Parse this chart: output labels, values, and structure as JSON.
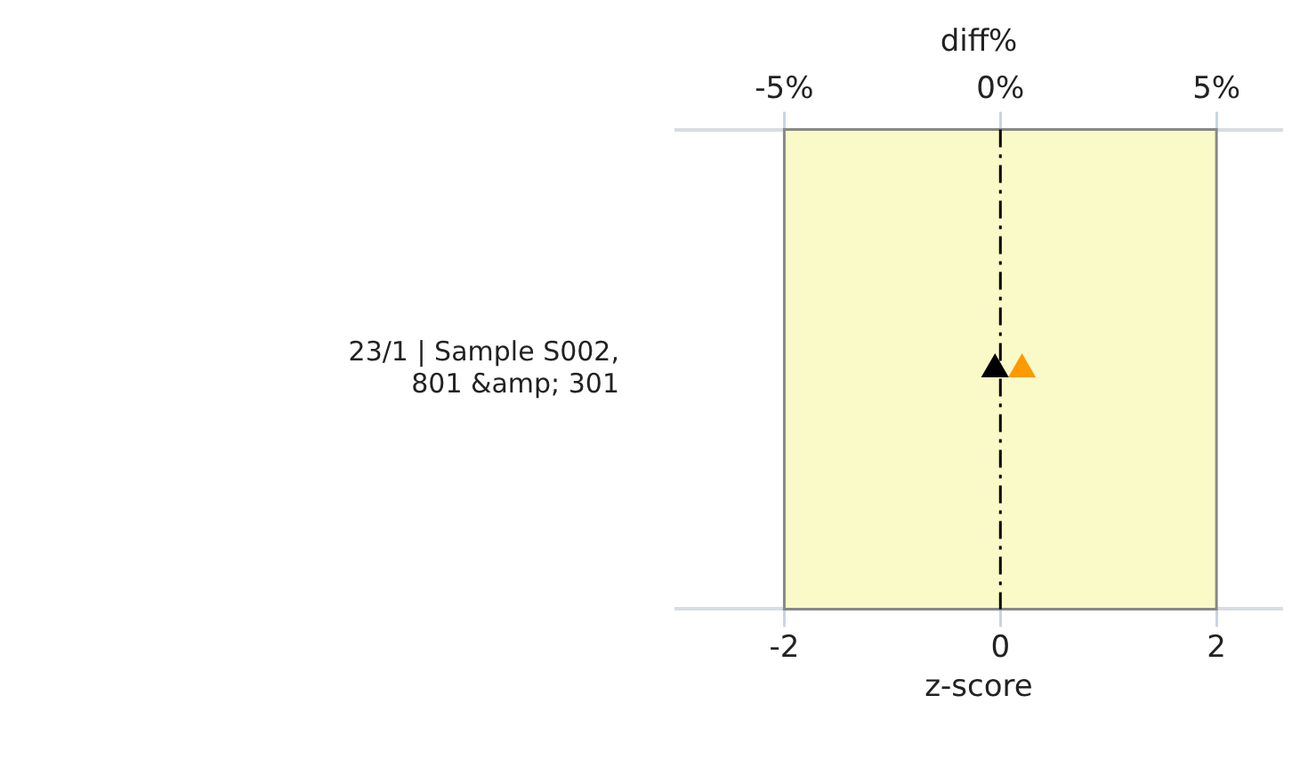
{
  "chart_data": {
    "type": "scatter",
    "xlabel": "z-score",
    "x2label": "diff%",
    "categories": [
      "23/1 | Sample S002, 801 &amp; 301"
    ],
    "series": [
      {
        "color": "#000000",
        "values": [
          -0.05
        ],
        "marker": "triangle"
      },
      {
        "color": "#ff9900",
        "values": [
          0.2
        ],
        "marker": "triangle"
      }
    ],
    "orientation": "horizontal",
    "xlim": [
      -3,
      2.6
    ],
    "xticks": [
      -2,
      0,
      2
    ],
    "x2lim": [
      -7.5,
      6.5
    ],
    "x2ticks": [
      {
        "value": -5,
        "label": "-5%"
      },
      {
        "value": 0,
        "label": "0%"
      },
      {
        "value": 5,
        "label": "5%"
      }
    ],
    "bands": [
      {
        "axis": "x",
        "from": -2,
        "to": 2,
        "color": "#fafac8"
      }
    ],
    "ref_lines": [
      {
        "axis": "x",
        "value": 0,
        "color": "#000000",
        "line_style": "dashed"
      }
    ]
  }
}
